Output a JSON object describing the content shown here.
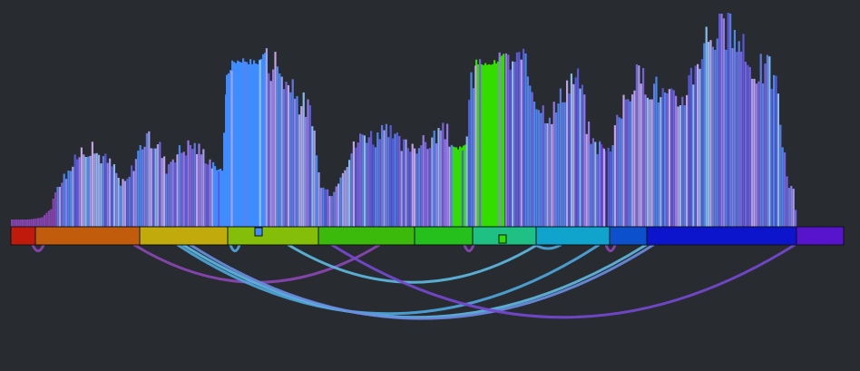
{
  "background": "#282b30",
  "segments": [
    {
      "color": "#c01a0c"
    },
    {
      "color": "#c05c0c"
    },
    {
      "color": "#c0aa0c"
    },
    {
      "color": "#84be08"
    },
    {
      "color": "#3cba0c"
    },
    {
      "color": "#26c01c"
    },
    {
      "color": "#1ec084"
    },
    {
      "color": "#10a4cc"
    },
    {
      "color": "#0c50cc"
    },
    {
      "color": "#0c14cc"
    },
    {
      "color": "#5814cc"
    }
  ],
  "arc_colors": {
    "magenta": "#8a46b4",
    "cyan": "#5cb8e0",
    "sky": "#4ea6dc",
    "violet": "#7448d0",
    "periwinkle": "#6a8ce0"
  },
  "bar_palette": [
    "#4a8cf8",
    "#7a64e0",
    "#a6a4f0",
    "#6080e8",
    "#c8a8f0",
    "#5a5ce0",
    "#8ac4f8",
    "#9a7ef0"
  ],
  "highlight_colors": {
    "blue_block": "#3f8cff",
    "green_block": "#33dd00",
    "purple_fill": "#8a30c0"
  }
}
